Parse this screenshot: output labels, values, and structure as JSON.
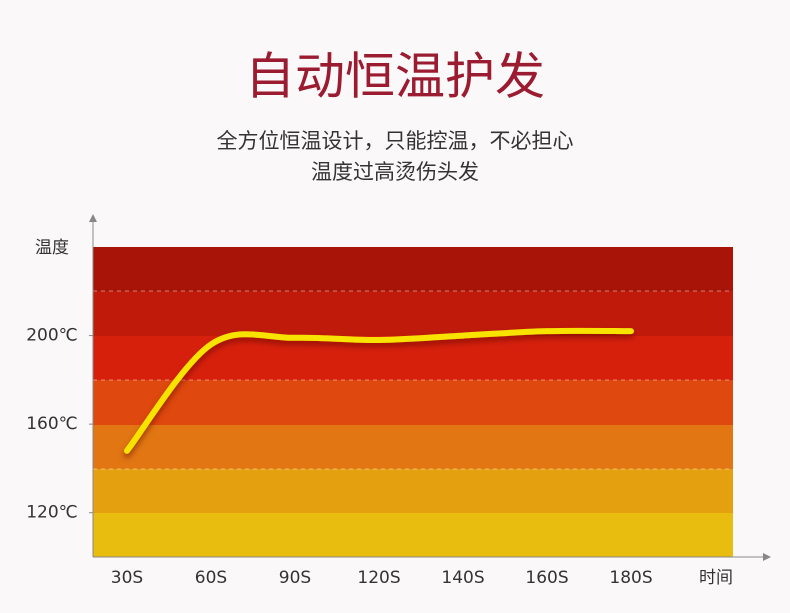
{
  "chart_data": {
    "type": "line",
    "title": "自动恒温护发",
    "subtitle": [
      "全方位恒温设计，只能控温，不必担心",
      "温度过高烫伤头发"
    ],
    "y_label": "温度",
    "x_label": "时间",
    "categories": [
      "30S",
      "60S",
      "90S",
      "120S",
      "140S",
      "160S",
      "180S"
    ],
    "series": [
      {
        "name": "温度",
        "color": "#f7e200",
        "values": [
          148,
          196,
          199,
          198,
          200,
          202,
          202
        ]
      }
    ],
    "ylim": [
      100,
      240
    ],
    "yticks": [
      {
        "value": 120,
        "label": "120℃"
      },
      {
        "value": 160,
        "label": "160℃"
      },
      {
        "value": 200,
        "label": "200℃"
      }
    ]
  }
}
